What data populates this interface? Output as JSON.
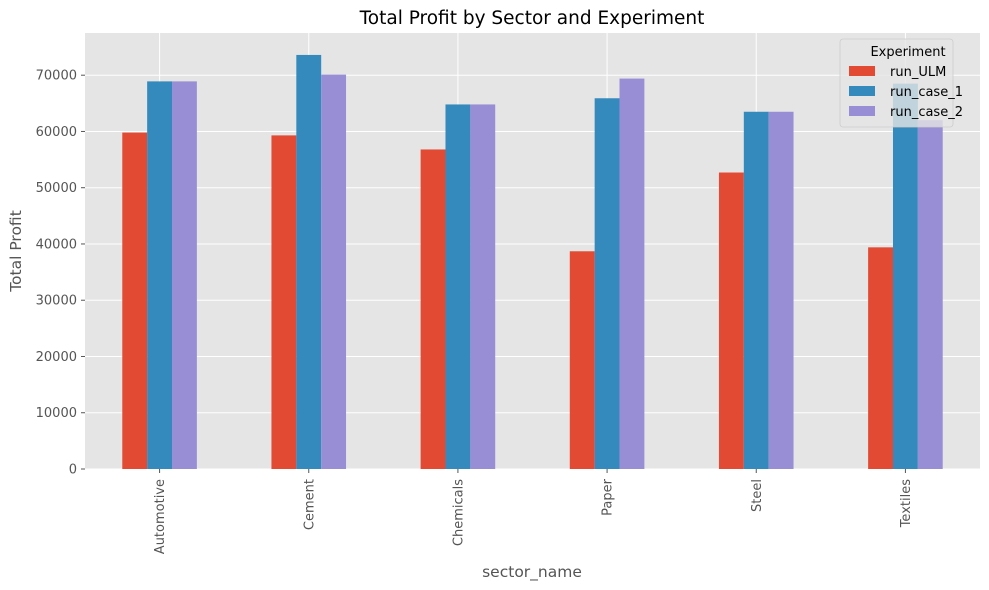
{
  "chart_data": {
    "type": "bar",
    "title": "Total Profit by Sector and Experiment",
    "xlabel": "sector_name",
    "ylabel": "Total Profit",
    "categories": [
      "Automotive",
      "Cement",
      "Chemicals",
      "Paper",
      "Steel",
      "Textiles"
    ],
    "series": [
      {
        "name": "run_ULM",
        "color": "#E24A33",
        "values": [
          59800,
          59300,
          56800,
          38700,
          52700,
          39400
        ]
      },
      {
        "name": "run_case_1",
        "color": "#348ABD",
        "values": [
          68900,
          73600,
          64800,
          65900,
          63500,
          68500
        ]
      },
      {
        "name": "run_case_2",
        "color": "#988ED5",
        "values": [
          68900,
          70100,
          64800,
          69400,
          63500,
          62000
        ]
      }
    ],
    "ylim": [
      0,
      77500
    ],
    "yticks": [
      0,
      10000,
      20000,
      30000,
      40000,
      50000,
      60000,
      70000
    ],
    "grid": true,
    "legend": {
      "title": "Experiment",
      "position": "top-right"
    },
    "style": {
      "plot_background": "#E5E5E5",
      "grid_color": "#FFFFFF"
    }
  }
}
